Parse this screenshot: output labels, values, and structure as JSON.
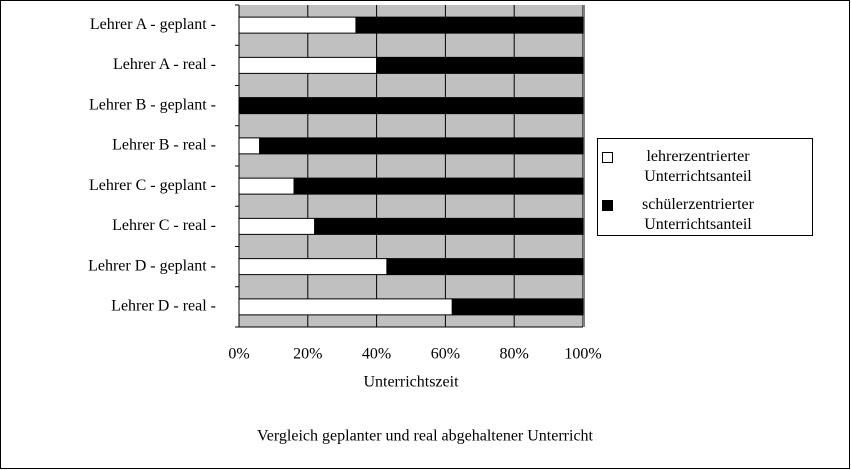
{
  "chart_data": {
    "type": "stacked_bar_horizontal",
    "title": "Vergleich geplanter und real abgehaltener Unterricht",
    "x_label": "Unterrichtszeit",
    "categories": [
      "Lehrer A - geplant -",
      "Lehrer A - real -",
      "Lehrer B - geplant -",
      "Lehrer B - real -",
      "Lehrer C - geplant -",
      "Lehrer C - real -",
      "Lehrer D - geplant -",
      "Lehrer D - real -"
    ],
    "series": [
      {
        "name": "lehrerzentrierter Unterrichtsanteil",
        "color": "#ffffff",
        "values": [
          34,
          40,
          0,
          6,
          16,
          22,
          43,
          62
        ]
      },
      {
        "name": "schülerzentrierter Unterrichtsanteil",
        "color": "#000000",
        "values": [
          66,
          60,
          100,
          94,
          84,
          78,
          57,
          38
        ]
      }
    ],
    "xlim": [
      0,
      100
    ],
    "xticks": [
      {
        "value": 0,
        "label": "0%"
      },
      {
        "value": 20,
        "label": "20%"
      },
      {
        "value": 40,
        "label": "40%"
      },
      {
        "value": 60,
        "label": "60%"
      },
      {
        "value": 80,
        "label": "80%"
      },
      {
        "value": 100,
        "label": "100%"
      }
    ],
    "grid": true,
    "legend": "right",
    "plot_background": "#c0c0c0"
  }
}
